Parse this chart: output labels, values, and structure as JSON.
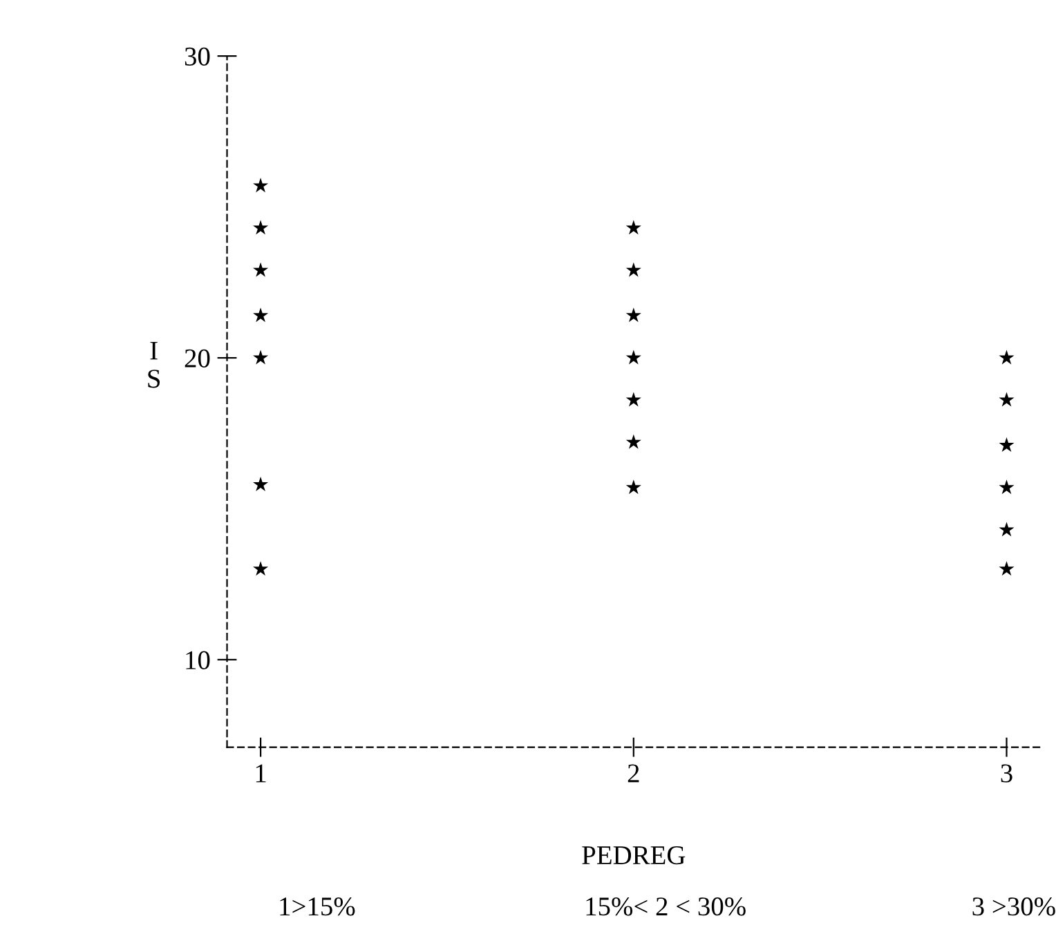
{
  "chart_data": {
    "type": "scatter",
    "xlabel": "PEDREG",
    "ylabel": "IS",
    "x": [
      1,
      1,
      1,
      1,
      1,
      1,
      1,
      2,
      2,
      2,
      2,
      2,
      2,
      2,
      3,
      3,
      3,
      3,
      3,
      3
    ],
    "values": [
      25.7,
      24.3,
      22.9,
      21.4,
      20,
      15.8,
      13,
      24.3,
      22.9,
      21.4,
      20,
      18.6,
      17.2,
      15.7,
      20,
      18.6,
      17.1,
      15.7,
      14.3,
      13
    ],
    "color": "#000000",
    "marker": "star",
    "xlim": [
      0.91,
      3.09
    ],
    "xticks": [
      1,
      2,
      3
    ],
    "ylim": [
      7.1,
      30
    ],
    "yticks": [
      10,
      20,
      30
    ],
    "grid": false,
    "annotations": [
      "1>15%",
      "15%< 2 < 30%",
      "3 >30%"
    ]
  }
}
